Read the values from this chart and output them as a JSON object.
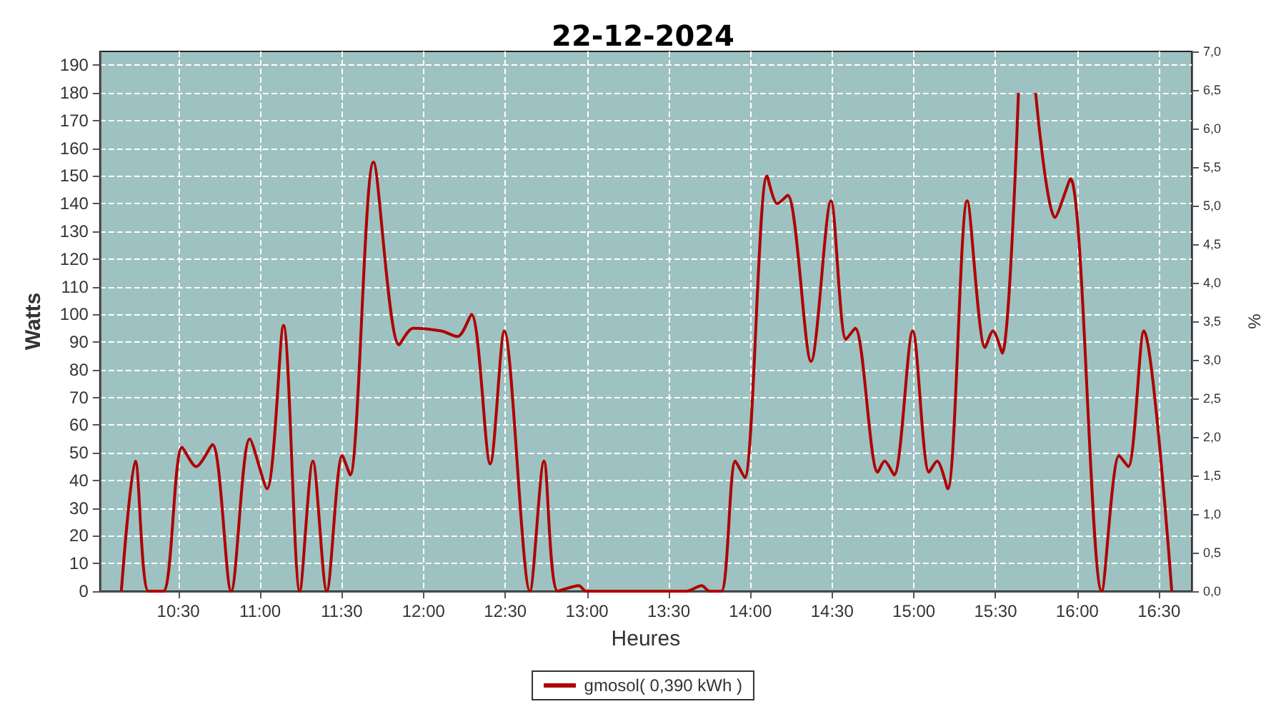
{
  "chart_data": {
    "type": "line",
    "title": "22-12-2024",
    "xlabel": "Heures",
    "ylabel": "Watts",
    "y2label": "%",
    "x": [
      10.151,
      10.237,
      10.317,
      10.408,
      10.523,
      10.609,
      10.708,
      10.823,
      10.937,
      11.042,
      11.143,
      11.243,
      11.323,
      11.408,
      11.503,
      11.551,
      11.694,
      11.851,
      11.937,
      12.108,
      12.208,
      12.293,
      12.408,
      12.494,
      12.651,
      12.737,
      12.822,
      12.951,
      12.994,
      13.608,
      13.702,
      13.75,
      13.822,
      13.908,
      13.965,
      14.102,
      14.165,
      14.228,
      14.371,
      14.493,
      14.585,
      14.641,
      14.779,
      14.821,
      14.879,
      14.993,
      15.093,
      15.142,
      15.207,
      15.327,
      15.436,
      15.484,
      15.541,
      15.64,
      15.664,
      15.693,
      15.721,
      15.745,
      15.864,
      15.958,
      16.15,
      16.256,
      16.312,
      16.407,
      16.578
    ],
    "series": [
      {
        "name": "gmosol( 0,390 kWh )",
        "color": "#b00000",
        "values": [
          0,
          47,
          0,
          0,
          52,
          45,
          53,
          0,
          55,
          37,
          96,
          0,
          47,
          0,
          49,
          42,
          155,
          89,
          95,
          94,
          92,
          100,
          46,
          94,
          0,
          47,
          0,
          2,
          0,
          0,
          2,
          0,
          0,
          47,
          41,
          150,
          140,
          143,
          83,
          141,
          91,
          95,
          43,
          47,
          42,
          94,
          43,
          47,
          37,
          141,
          88,
          94,
          86,
          180,
          null,
          null,
          null,
          180,
          135,
          149,
          0,
          49,
          45,
          94,
          0
        ]
      }
    ],
    "xlim": [
      10.02,
      16.7
    ],
    "xticks": [
      {
        "value": 10.5,
        "label": "10:30"
      },
      {
        "value": 11,
        "label": "11:00"
      },
      {
        "value": 11.5,
        "label": "11:30"
      },
      {
        "value": 12,
        "label": "12:00"
      },
      {
        "value": 12.5,
        "label": "12:30"
      },
      {
        "value": 13,
        "label": "13:00"
      },
      {
        "value": 13.5,
        "label": "13:30"
      },
      {
        "value": 14,
        "label": "14:00"
      },
      {
        "value": 14.5,
        "label": "14:30"
      },
      {
        "value": 15,
        "label": "15:00"
      },
      {
        "value": 15.5,
        "label": "15:30"
      },
      {
        "value": 16,
        "label": "16:00"
      },
      {
        "value": 16.5,
        "label": "16:30"
      }
    ],
    "ylim": [
      0,
      195
    ],
    "yticks": [
      0,
      10,
      20,
      30,
      40,
      50,
      60,
      70,
      80,
      90,
      100,
      110,
      120,
      130,
      140,
      150,
      160,
      170,
      180,
      190
    ],
    "y2lim": [
      0,
      7
    ],
    "y2ticks": [
      {
        "value": 0,
        "label": "0,0"
      },
      {
        "value": 0.5,
        "label": "0,5"
      },
      {
        "value": 1,
        "label": "1,0"
      },
      {
        "value": 1.5,
        "label": "1,5"
      },
      {
        "value": 2,
        "label": "2,0"
      },
      {
        "value": 2.5,
        "label": "2,5"
      },
      {
        "value": 3,
        "label": "3,0"
      },
      {
        "value": 3.5,
        "label": "3,5"
      },
      {
        "value": 4,
        "label": "4,0"
      },
      {
        "value": 4.5,
        "label": "4,5"
      },
      {
        "value": 5,
        "label": "5,0"
      },
      {
        "value": 5.5,
        "label": "5,5"
      },
      {
        "value": 6,
        "label": "6,0"
      },
      {
        "value": 6.5,
        "label": "6,5"
      },
      {
        "value": 7,
        "label": "7,0"
      }
    ],
    "grid": true,
    "legend": "bottom",
    "marker": "none",
    "line_style": "solid"
  }
}
